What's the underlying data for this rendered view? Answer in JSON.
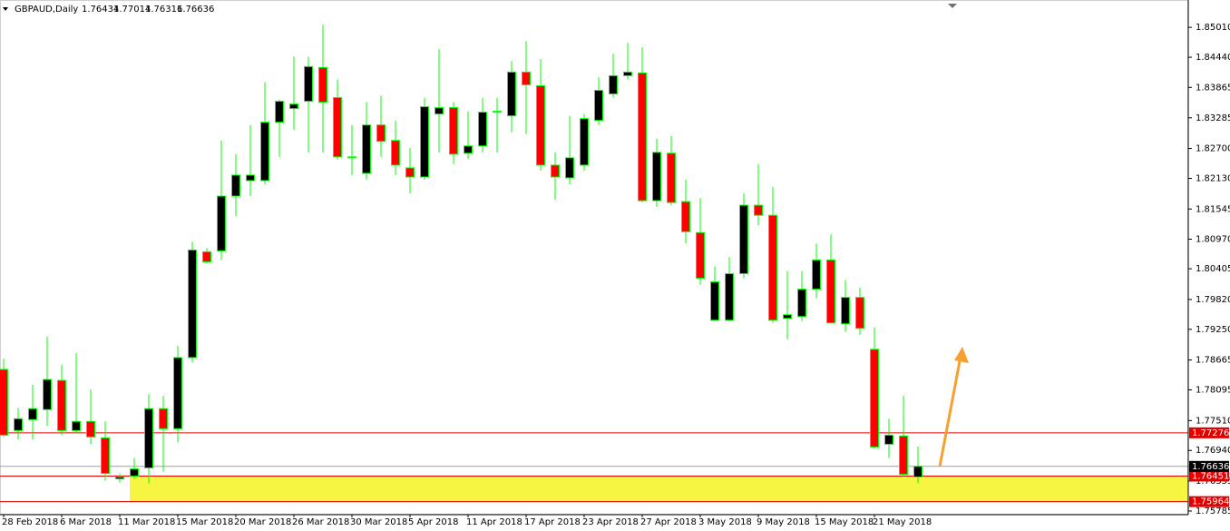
{
  "chart_data": {
    "type": "candlestick",
    "title": "GBPAUD,Daily",
    "categories": [
      "28 Feb 2018",
      null,
      null,
      null,
      "6 Mar 2018",
      null,
      null,
      null,
      "11 Mar 2018",
      null,
      null,
      null,
      "15 Mar 2018",
      null,
      null,
      null,
      "20 Mar 2018",
      null,
      null,
      null,
      "26 Mar 2018",
      null,
      null,
      null,
      "30 Mar 2018",
      null,
      null,
      null,
      "5 Apr 2018",
      null,
      null,
      null,
      "11 Apr 2018",
      null,
      null,
      null,
      "17 Apr 2018",
      null,
      null,
      null,
      "23 Apr 2018",
      null,
      null,
      null,
      "27 Apr 2018",
      null,
      null,
      null,
      "3 May 2018",
      null,
      null,
      null,
      "9 May 2018",
      null,
      null,
      null,
      "15 May 2018",
      null,
      null,
      null,
      "21 May 2018",
      null,
      null,
      null
    ],
    "open": [
      1.78485,
      1.77319,
      1.77528,
      1.77719,
      1.78276,
      1.77319,
      1.77493,
      1.7718,
      1.76397,
      1.76449,
      1.76606,
      1.77737,
      1.77354,
      1.78711,
      1.80729,
      1.80747,
      1.81791,
      1.82087,
      1.82087,
      1.832,
      1.83461,
      1.836,
      1.84244,
      1.8367,
      1.82522,
      1.82226,
      1.83148,
      1.82852,
      1.8233,
      1.82156,
      1.83357,
      1.83479,
      1.82609,
      1.82748,
      1.83392,
      1.83322,
      1.84157,
      1.83896,
      1.82382,
      1.82139,
      1.82382,
      1.83235,
      1.8374,
      1.84088,
      1.8414,
      1.81704,
      1.82609,
      1.81686,
      1.81095,
      1.79424,
      1.79424,
      1.80312,
      1.81617,
      1.81425,
      1.79459,
      1.79494,
      1.80016,
      1.80573,
      1.79355,
      1.79859,
      1.78868,
      1.77058,
      1.77215,
      1.76434
    ],
    "high": [
      1.78694,
      1.77754,
      1.78189,
      1.79111,
      1.78572,
      1.78798,
      1.78102,
      1.77493,
      1.76501,
      1.76797,
      1.78015,
      1.7798,
      1.78937,
      1.80921,
      1.80799,
      1.82852,
      1.82591,
      1.83148,
      1.83966,
      1.83635,
      1.84453,
      1.84453,
      1.85062,
      1.84018,
      1.83148,
      1.83583,
      1.83705,
      1.83235,
      1.82713,
      1.8367,
      1.84592,
      1.83583,
      1.83409,
      1.8367,
      1.8367,
      1.84366,
      1.84749,
      1.84401,
      1.82626,
      1.83322,
      1.83357,
      1.84053,
      1.84505,
      1.84714,
      1.84627,
      1.82887,
      1.82939,
      1.82104,
      1.81756,
      1.80451,
      1.80625,
      1.81843,
      1.824,
      1.81965,
      1.80364,
      1.80364,
      1.80886,
      1.8106,
      1.8019,
      1.80051,
      1.79285,
      1.77545,
      1.7798,
      1.77014
    ],
    "low": [
      1.77197,
      1.77145,
      1.77145,
      1.77406,
      1.77232,
      1.77267,
      1.77058,
      1.76362,
      1.76327,
      1.76397,
      1.7631,
      1.76536,
      1.77093,
      1.78624,
      1.80503,
      1.80573,
      1.81408,
      1.81791,
      1.82017,
      1.82539,
      1.83061,
      1.82626,
      1.82626,
      1.82487,
      1.82191,
      1.82104,
      1.82539,
      1.82191,
      1.81843,
      1.82104,
      1.82626,
      1.824,
      1.82504,
      1.82626,
      1.82626,
      1.83009,
      1.82974,
      1.82278,
      1.81721,
      1.82017,
      1.82278,
      1.83148,
      1.8367,
      1.84018,
      1.81669,
      1.81582,
      1.81617,
      1.80886,
      1.80103,
      1.79407,
      1.79407,
      1.80225,
      1.81234,
      1.79372,
      1.79059,
      1.79407,
      1.79842,
      1.79355,
      1.79198,
      1.79146,
      1.76971,
      1.76797,
      1.76449,
      1.76316
    ],
    "close": [
      1.77232,
      1.77545,
      1.77737,
      1.78293,
      1.77319,
      1.77493,
      1.77197,
      1.76501,
      1.76432,
      1.76588,
      1.77737,
      1.77354,
      1.78711,
      1.80764,
      1.80538,
      1.81791,
      1.82191,
      1.82191,
      1.832,
      1.836,
      1.83548,
      1.84262,
      1.83583,
      1.82539,
      1.82539,
      1.83148,
      1.82835,
      1.82382,
      1.82156,
      1.83496,
      1.83479,
      1.82591,
      1.82748,
      1.83392,
      1.83409,
      1.84157,
      1.83914,
      1.82382,
      1.82156,
      1.82522,
      1.8327,
      1.83809,
      1.84088,
      1.84157,
      1.81704,
      1.82626,
      1.81669,
      1.81112,
      1.80225,
      1.80155,
      1.80312,
      1.81617,
      1.81425,
      1.79424,
      1.79529,
      1.80016,
      1.80573,
      1.79372,
      1.79859,
      1.79268,
      1.77006,
      1.77232,
      1.76484,
      1.76636
    ],
    "up_color": "#000000",
    "down_color": "#ff0000",
    "wick_color": "#00ff00",
    "ylim": [
      1.75715,
      1.85532
    ],
    "yticks": [
      {
        "value": 1.8501,
        "label": "1.85010"
      },
      {
        "value": 1.8444,
        "label": "1.84440"
      },
      1.83865,
      1.83285,
      {
        "value": 1.827,
        "label": "1.82700"
      },
      {
        "value": 1.8213,
        "label": "1.82130"
      },
      1.81545,
      {
        "value": 1.8097,
        "label": "1.80970"
      },
      1.80405,
      {
        "value": 1.7982,
        "label": "1.79820"
      },
      {
        "value": 1.7925,
        "label": "1.79250"
      },
      1.78665,
      1.78095,
      {
        "value": 1.7751,
        "label": "1.77510"
      },
      {
        "value": 1.7694,
        "label": "1.76940"
      },
      1.76355,
      1.75785
    ],
    "levels": [
      {
        "value": 1.77276,
        "color": "#e00000"
      },
      {
        "value": 1.76451,
        "color": "#e00000"
      },
      {
        "value": 1.75964,
        "color": "#e00000"
      }
    ],
    "zone_color": "#f5f542",
    "current_price_color": "#a0a0a0"
  }
}
